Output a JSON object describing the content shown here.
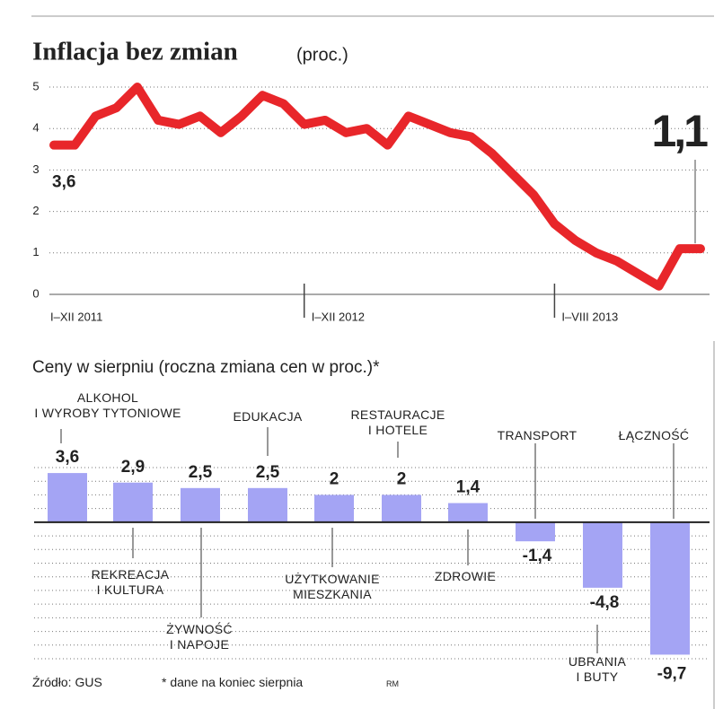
{
  "chart_data": [
    {
      "type": "line",
      "title": "Inflacja bez zmian",
      "subtitle": "(proc.)",
      "categories": [
        "I–XII 2011",
        null,
        null,
        null,
        null,
        null,
        null,
        null,
        null,
        null,
        null,
        null,
        "I–XII 2012",
        null,
        null,
        null,
        null,
        null,
        null,
        null,
        null,
        null,
        null,
        null,
        "I–VIII 2013",
        null,
        null,
        null,
        null,
        null,
        null,
        null
      ],
      "values": [
        3.6,
        3.6,
        4.3,
        4.5,
        5.0,
        4.2,
        4.1,
        4.3,
        3.9,
        4.3,
        4.8,
        4.6,
        4.1,
        4.2,
        3.9,
        4.0,
        3.6,
        4.3,
        4.1,
        3.9,
        3.8,
        3.4,
        2.9,
        2.4,
        1.7,
        1.3,
        1.0,
        0.8,
        0.5,
        0.2,
        1.1,
        1.1
      ],
      "value_labels": [
        "3,6",
        null,
        null,
        null,
        null,
        null,
        null,
        null,
        null,
        null,
        null,
        null,
        null,
        null,
        null,
        null,
        null,
        null,
        null,
        null,
        null,
        null,
        null,
        null,
        null,
        null,
        null,
        null,
        null,
        null,
        null,
        "1,1"
      ],
      "color": "#e8262a",
      "ylim": [
        0,
        5
      ],
      "yticks": [
        0,
        1,
        2,
        3,
        4,
        5
      ],
      "grid": true
    },
    {
      "type": "bar",
      "title": "Ceny w sierpniu (roczna zmiana cen w proc.)*",
      "categories": [
        "ALKOHOL\nI WYROBY TYTONIOWE",
        "REKREACJA\nI KULTURA",
        "ŻYWNOŚĆ\nI NAPOJE",
        "EDUKACJA",
        "UŻYTKOWANIE\nMIESZKANIA",
        "RESTAURACJE\nI HOTELE",
        "ZDROWIE",
        "TRANSPORT",
        "UBRANIA\nI BUTY",
        "ŁĄCZNOŚĆ"
      ],
      "values": [
        3.6,
        2.9,
        2.5,
        2.5,
        2,
        2,
        1.4,
        -1.4,
        -4.8,
        -9.7
      ],
      "value_labels": [
        "3,6",
        "2,9",
        "2,5",
        "2,5",
        "2",
        "2",
        "1,4",
        "-1,4",
        "-4,8",
        "-9,7"
      ],
      "color": "#a4a4f4",
      "ylim": [
        -10,
        4
      ],
      "yticks": [
        -10,
        -9,
        -8,
        -7,
        -6,
        -5,
        -4,
        -3,
        -2,
        -1,
        0,
        1,
        2,
        3,
        4
      ],
      "grid": true
    }
  ],
  "footer": {
    "source": "Źródło: GUS",
    "note": "* dane na koniec sierpnia",
    "author": "RM"
  }
}
